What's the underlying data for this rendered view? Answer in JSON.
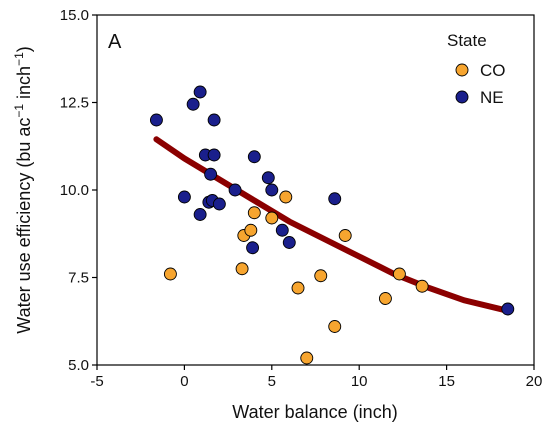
{
  "chart_data": {
    "type": "scatter",
    "panel_label": "A",
    "xlabel": "Water balance (inch)",
    "ylabel": {
      "main": "Water use efficiency (bu ac",
      "sup1": "−1",
      "mid": " inch",
      "sup2": "−1",
      "end": ")"
    },
    "xlim": [
      -5,
      20
    ],
    "ylim": [
      5.0,
      15.0
    ],
    "x_ticks": [
      -5,
      0,
      5,
      10,
      15,
      20
    ],
    "x_tick_labels": [
      "-5",
      "0",
      "5",
      "10",
      "15",
      "20"
    ],
    "y_ticks": [
      5.0,
      7.5,
      10.0,
      12.5,
      15.0
    ],
    "y_tick_labels": [
      "5.0",
      "7.5",
      "10.0",
      "12.5",
      "15.0"
    ],
    "grid": false,
    "legend": {
      "title": "State",
      "placement": "top-right",
      "entries": [
        {
          "label": "CO",
          "color": "#F7A52F"
        },
        {
          "label": "NE",
          "color": "#1A1F8C"
        }
      ]
    },
    "series": [
      {
        "name": "CO",
        "color": "#F7A52F",
        "points": [
          [
            -0.8,
            7.6
          ],
          [
            3.3,
            7.75
          ],
          [
            3.4,
            8.7
          ],
          [
            3.8,
            8.85
          ],
          [
            4.0,
            9.35
          ],
          [
            5.0,
            9.2
          ],
          [
            5.8,
            9.8
          ],
          [
            6.5,
            7.2
          ],
          [
            7.0,
            5.2
          ],
          [
            7.8,
            7.55
          ],
          [
            8.6,
            6.1
          ],
          [
            9.2,
            8.7
          ],
          [
            11.5,
            6.9
          ],
          [
            12.3,
            7.6
          ],
          [
            13.6,
            7.25
          ]
        ]
      },
      {
        "name": "NE",
        "color": "#1A1F8C",
        "points": [
          [
            -1.6,
            12.0
          ],
          [
            0.0,
            9.8
          ],
          [
            0.5,
            12.45
          ],
          [
            0.9,
            12.8
          ],
          [
            0.9,
            9.3
          ],
          [
            1.2,
            11.0
          ],
          [
            1.4,
            9.65
          ],
          [
            1.5,
            10.45
          ],
          [
            1.7,
            11.0
          ],
          [
            1.7,
            12.0
          ],
          [
            1.6,
            9.7
          ],
          [
            2.0,
            9.6
          ],
          [
            2.9,
            10.0
          ],
          [
            3.9,
            8.35
          ],
          [
            4.0,
            10.95
          ],
          [
            4.8,
            10.35
          ],
          [
            5.0,
            10.0
          ],
          [
            5.6,
            8.85
          ],
          [
            6.0,
            8.5
          ],
          [
            8.6,
            9.75
          ],
          [
            18.5,
            6.6
          ]
        ]
      }
    ],
    "fit_curve": {
      "color": "#8B0000",
      "points": [
        [
          -1.6,
          11.45
        ],
        [
          0.0,
          10.9
        ],
        [
          2.0,
          10.3
        ],
        [
          4.0,
          9.7
        ],
        [
          6.0,
          9.1
        ],
        [
          8.0,
          8.6
        ],
        [
          10.0,
          8.1
        ],
        [
          12.0,
          7.6
        ],
        [
          14.0,
          7.2
        ],
        [
          16.0,
          6.85
        ],
        [
          18.5,
          6.55
        ]
      ]
    }
  }
}
